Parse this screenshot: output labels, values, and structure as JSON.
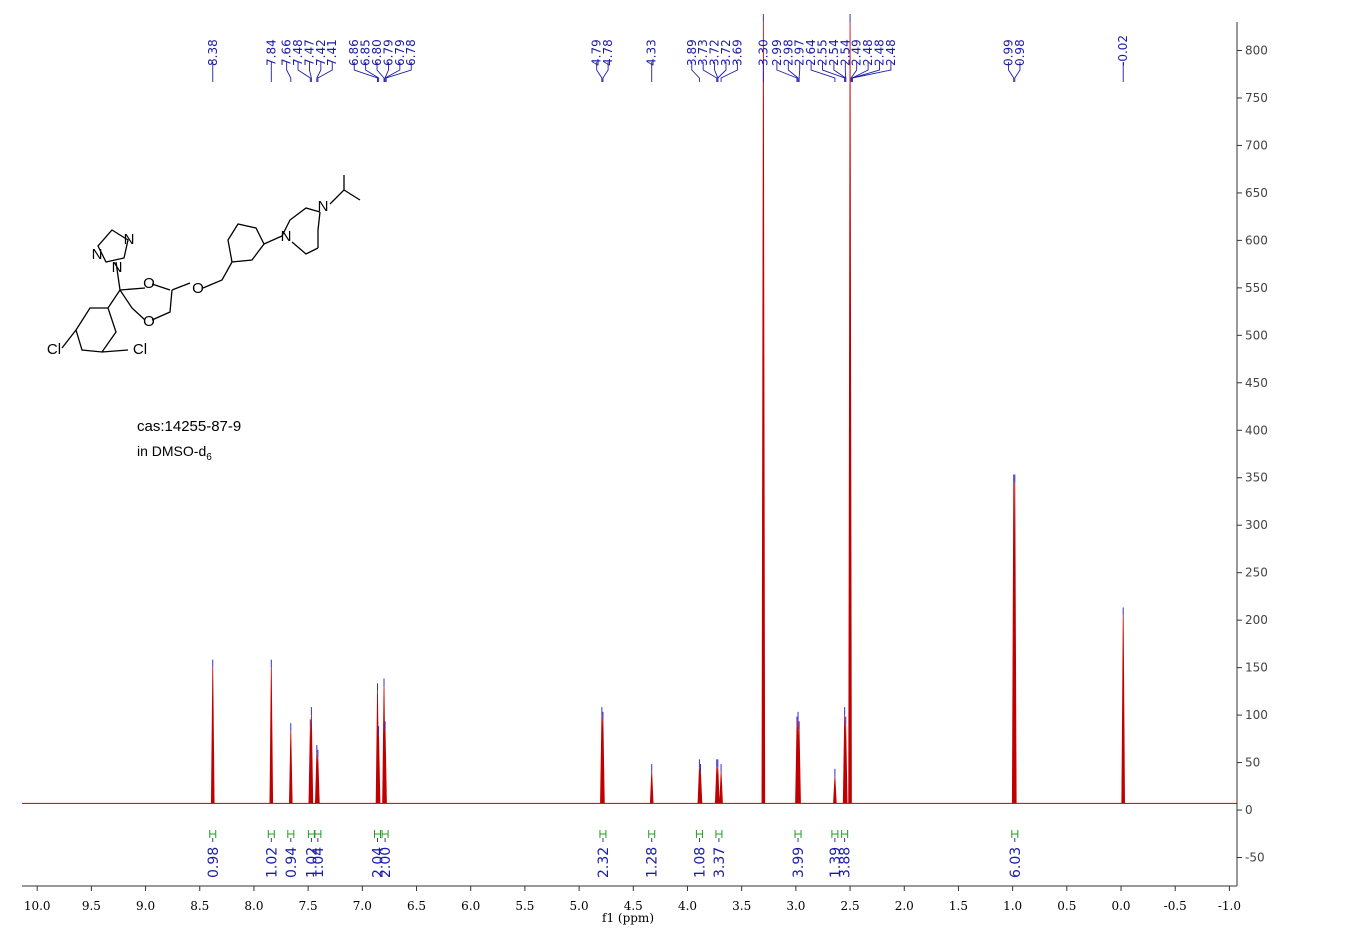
{
  "chart_data": {
    "type": "nmr",
    "x_label": "f1 (ppm)",
    "xlim": [
      10.14,
      -1.07
    ],
    "xticks": [
      {
        "value": 10,
        "label": "10.0"
      },
      9.5,
      {
        "value": 9,
        "label": "9.0"
      },
      8.5,
      {
        "value": 8,
        "label": "8.0"
      },
      7.5,
      {
        "value": 7,
        "label": "7.0"
      },
      6.5,
      {
        "value": 6,
        "label": "6.0"
      },
      5.5,
      {
        "value": 5,
        "label": "5.0"
      },
      4.5,
      {
        "value": 4,
        "label": "4.0"
      },
      3.5,
      {
        "value": 3,
        "label": "3.0"
      },
      2.5,
      {
        "value": 2,
        "label": "2.0"
      },
      1.5,
      {
        "value": 1,
        "label": "1.0"
      },
      0.5,
      {
        "value": 0,
        "label": "0.0"
      },
      -0.5,
      {
        "value": -1,
        "label": "-1.0"
      }
    ],
    "ylim": [
      -80,
      830
    ],
    "yticks": [
      -50,
      0,
      50,
      100,
      150,
      200,
      250,
      300,
      350,
      400,
      450,
      500,
      550,
      600,
      650,
      700,
      750,
      800
    ],
    "color": "#c00000",
    "label_color": "#1c1ca8",
    "integral_color": "#1aa01a",
    "baseline": 7,
    "peaks": {
      "ppm": [
        8.38,
        7.84,
        7.66,
        7.48,
        7.47,
        7.42,
        7.41,
        6.86,
        6.85,
        6.8,
        6.79,
        4.79,
        4.78,
        4.33,
        3.89,
        3.88,
        3.73,
        3.72,
        3.69,
        3.3,
        2.99,
        2.98,
        2.97,
        2.64,
        2.55,
        2.54,
        2.5,
        0.99,
        0.98,
        -0.02
      ],
      "heights": [
        150,
        150,
        83,
        87,
        100,
        60,
        55,
        125,
        80,
        130,
        85,
        100,
        95,
        40,
        45,
        40,
        45,
        45,
        40,
        830,
        90,
        95,
        85,
        35,
        100,
        90,
        830,
        345,
        345,
        205
      ]
    },
    "peak_labels": [
      8.38,
      7.84,
      7.66,
      7.48,
      7.47,
      7.42,
      7.41,
      6.86,
      6.85,
      {
        "value": 6.8,
        "label": "6.80"
      },
      6.79,
      6.79,
      6.78,
      4.79,
      4.78,
      4.33,
      3.89,
      3.73,
      3.72,
      3.72,
      3.69,
      {
        "value": 3.3,
        "label": "3.30"
      },
      2.99,
      2.98,
      2.97,
      2.64,
      2.55,
      2.54,
      2.54,
      2.49,
      2.48,
      2.48,
      2.48,
      0.99,
      0.98,
      -0.02
    ],
    "integrals": {
      "ppm": [
        8.38,
        7.84,
        7.66,
        7.47,
        7.41,
        6.86,
        6.79,
        4.78,
        4.33,
        3.89,
        3.71,
        2.98,
        2.64,
        2.55,
        0.98
      ],
      "values": [
        0.98,
        1.02,
        0.94,
        1.02,
        1.04,
        2.04,
        {
          "value": 2,
          "label": "2.00"
        },
        2.32,
        1.28,
        1.08,
        3.37,
        3.99,
        1.39,
        3.88,
        6.03
      ]
    }
  },
  "structure": {
    "atoms": [
      "N",
      "N",
      "N",
      "O",
      "O",
      "O",
      "N",
      "N",
      "Cl",
      "Cl"
    ]
  },
  "annotations": {
    "cas": "cas:14255-87-9",
    "solvent": "in DMSO-d",
    "solvent_sub": "6"
  }
}
